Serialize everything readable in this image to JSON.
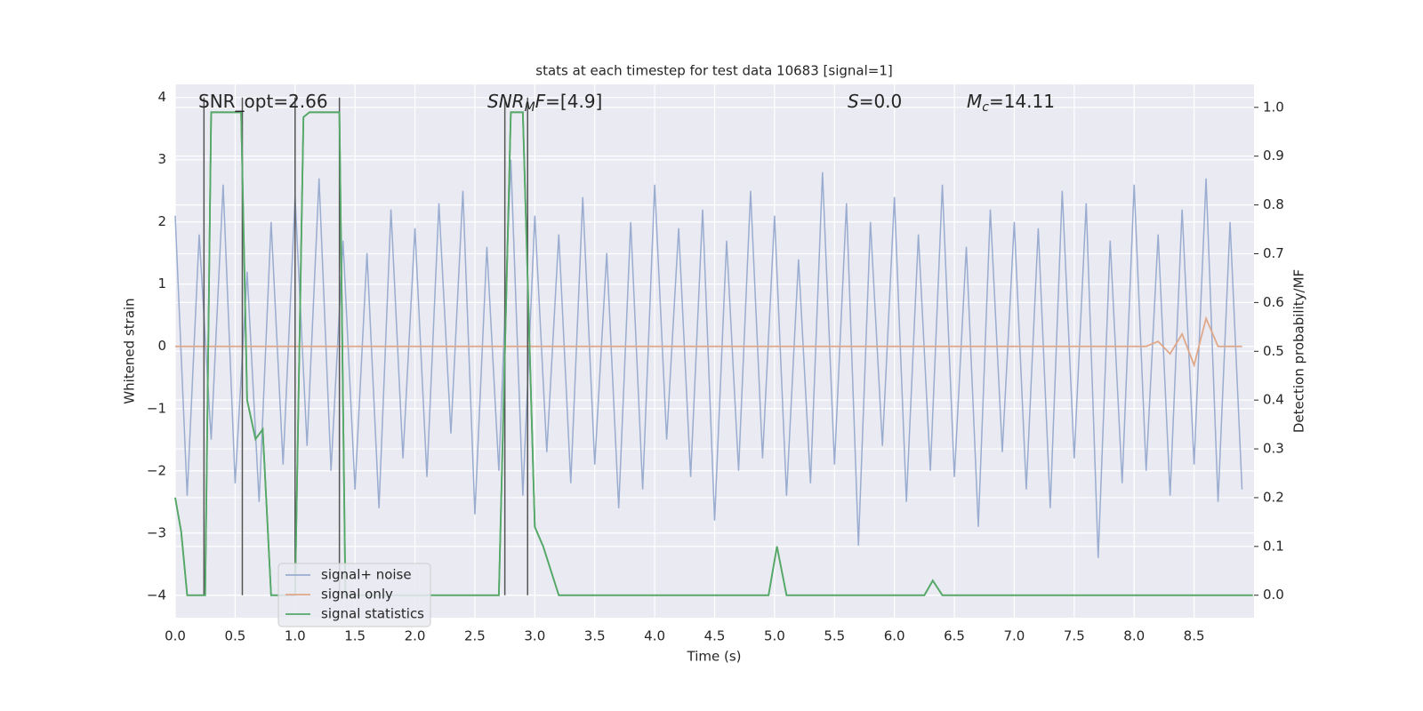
{
  "chart_data": {
    "type": "line",
    "title": "stats at each timestep for test data 10683 [signal=1]",
    "xlabel": "Time (s)",
    "ylabel": "Whitened strain",
    "y2label": "Detection probability/MF",
    "grid": true,
    "legend": "lower left",
    "xlim": [
      0,
      9.0
    ],
    "ylim": [
      -4.36,
      4.21
    ],
    "y2lim": [
      -0.046,
      1.047
    ],
    "xticks": [
      {
        "value": 0,
        "label": "0.0"
      },
      0.5,
      {
        "value": 1,
        "label": "1.0"
      },
      1.5,
      {
        "value": 2,
        "label": "2.0"
      },
      2.5,
      {
        "value": 3,
        "label": "3.0"
      },
      3.5,
      {
        "value": 4,
        "label": "4.0"
      },
      4.5,
      {
        "value": 5,
        "label": "5.0"
      },
      5.5,
      {
        "value": 6,
        "label": "6.0"
      },
      6.5,
      {
        "value": 7,
        "label": "7.0"
      },
      7.5,
      {
        "value": 8,
        "label": "8.0"
      },
      8.5
    ],
    "yticks": [
      {
        "value": -4,
        "label": "−4"
      },
      {
        "value": -3,
        "label": "−3"
      },
      {
        "value": -2,
        "label": "−2"
      },
      {
        "value": -1,
        "label": "−1"
      },
      0,
      1,
      2,
      3,
      4
    ],
    "y2ticks": [
      {
        "value": 0,
        "label": "0.0"
      },
      0.1,
      0.2,
      0.3,
      0.4,
      0.5,
      0.6,
      0.7,
      0.8,
      0.9,
      {
        "value": 1,
        "label": "1.0"
      }
    ],
    "x": [
      0.0,
      0.1,
      0.2,
      0.3,
      0.4,
      0.5,
      0.6,
      0.7,
      0.8,
      0.9,
      1.0,
      1.1,
      1.2,
      1.3,
      1.4,
      1.5,
      1.6,
      1.7,
      1.8,
      1.9,
      2.0,
      2.1,
      2.2,
      2.3,
      2.4,
      2.5,
      2.6,
      2.7,
      2.8,
      2.9,
      3.0,
      3.1,
      3.2,
      3.3,
      3.4,
      3.5,
      3.6,
      3.7,
      3.8,
      3.9,
      4.0,
      4.1,
      4.2,
      4.3,
      4.4,
      4.5,
      4.6,
      4.7,
      4.8,
      4.9,
      5.0,
      5.1,
      5.2,
      5.3,
      5.4,
      5.5,
      5.6,
      5.7,
      5.8,
      5.9,
      6.0,
      6.1,
      6.2,
      6.3,
      6.4,
      6.5,
      6.6,
      6.7,
      6.8,
      6.9,
      7.0,
      7.1,
      7.2,
      7.3,
      7.4,
      7.5,
      7.6,
      7.7,
      7.8,
      7.9,
      8.0,
      8.1,
      8.2,
      8.3,
      8.4,
      8.5,
      8.6,
      8.7,
      8.8,
      8.9
    ],
    "series": [
      {
        "name": "signal+ noise",
        "color": "#9aaccf",
        "values": [
          2.1,
          -2.4,
          1.8,
          -1.5,
          2.6,
          -2.2,
          1.2,
          -2.5,
          2.0,
          -1.9,
          2.4,
          -1.6,
          2.7,
          -2.0,
          1.7,
          -2.3,
          1.5,
          -2.6,
          2.2,
          -1.8,
          1.9,
          -2.1,
          2.3,
          -1.4,
          2.5,
          -2.7,
          1.6,
          -2.0,
          3.0,
          -2.4,
          2.1,
          -1.7,
          1.8,
          -2.2,
          2.4,
          -1.9,
          1.5,
          -2.6,
          2.0,
          -2.3,
          2.6,
          -1.5,
          1.9,
          -2.1,
          2.2,
          -2.8,
          1.7,
          -2.0,
          2.5,
          -1.8,
          2.1,
          -2.4,
          1.4,
          -2.2,
          2.8,
          -1.9,
          2.3,
          -3.2,
          2.0,
          -1.6,
          2.4,
          -2.5,
          1.8,
          -2.0,
          2.6,
          -2.1,
          1.6,
          -2.9,
          2.2,
          -1.7,
          2.0,
          -2.3,
          1.9,
          -2.6,
          2.5,
          -1.8,
          2.3,
          -3.4,
          1.7,
          -2.2,
          2.6,
          -2.0,
          1.8,
          -2.4,
          2.2,
          -1.9,
          2.7,
          -2.5,
          2.0,
          -2.3
        ]
      },
      {
        "name": "signal only",
        "color": "#e0a88a",
        "values": [
          0,
          0,
          0,
          0,
          0,
          0,
          0,
          0,
          0,
          0,
          0,
          0,
          0,
          0,
          0,
          0,
          0,
          0,
          0,
          0,
          0,
          0,
          0,
          0,
          0,
          0,
          0,
          0,
          0,
          0,
          0,
          0,
          0,
          0,
          0,
          0,
          0,
          0,
          0,
          0,
          0,
          0,
          0,
          0,
          0,
          0,
          0,
          0,
          0,
          0,
          0,
          0,
          0,
          0,
          0,
          0,
          0,
          0,
          0,
          0,
          0,
          0,
          0,
          0,
          0,
          0,
          0,
          0,
          0,
          0,
          0,
          0,
          0,
          0,
          0,
          0,
          0,
          0,
          0,
          0,
          0,
          0,
          0.08,
          -0.12,
          0.2,
          -0.3,
          0.45,
          0,
          0,
          0
        ]
      },
      {
        "name": "signal statistics",
        "color": "#55a868",
        "axis": "y2",
        "x": [
          0.0,
          0.05,
          0.1,
          0.25,
          0.3,
          0.55,
          0.6,
          0.67,
          0.73,
          0.8,
          1.0,
          1.07,
          1.12,
          1.37,
          1.42,
          2.7,
          2.8,
          2.9,
          3.0,
          3.07,
          3.2,
          3.5,
          4.95,
          5.02,
          5.1,
          6.25,
          6.32,
          6.4,
          8.99
        ],
        "values": [
          0.2,
          0.13,
          0.0,
          0.0,
          0.99,
          0.99,
          0.4,
          0.32,
          0.34,
          0.0,
          0.0,
          0.98,
          0.99,
          0.99,
          0.0,
          0.0,
          0.99,
          0.99,
          0.14,
          0.1,
          0.0,
          0.0,
          0.0,
          0.1,
          0.0,
          0.0,
          0.03,
          0.0,
          0.0
        ]
      }
    ],
    "vlines": {
      "color": "#555555",
      "x": [
        0.24,
        0.56,
        1.0,
        1.37,
        2.75,
        2.94
      ],
      "ymin": -4,
      "ymax": 4
    },
    "annotations": [
      [
        {
          "text": "SNR_opt=2.66"
        }
      ],
      [
        {
          "text": "SNR",
          "style": "italic"
        },
        {
          "text": "M",
          "style": "sub"
        },
        {
          "text": "F",
          "style": "italic"
        },
        {
          "text": "=[4.9]"
        }
      ],
      [
        {
          "text": "S",
          "style": "italic"
        },
        {
          "text": "=0.0"
        }
      ],
      [
        {
          "text": "M",
          "style": "italic"
        },
        {
          "text": "c",
          "style": "sub"
        },
        {
          "text": "=14.11"
        }
      ]
    ]
  }
}
